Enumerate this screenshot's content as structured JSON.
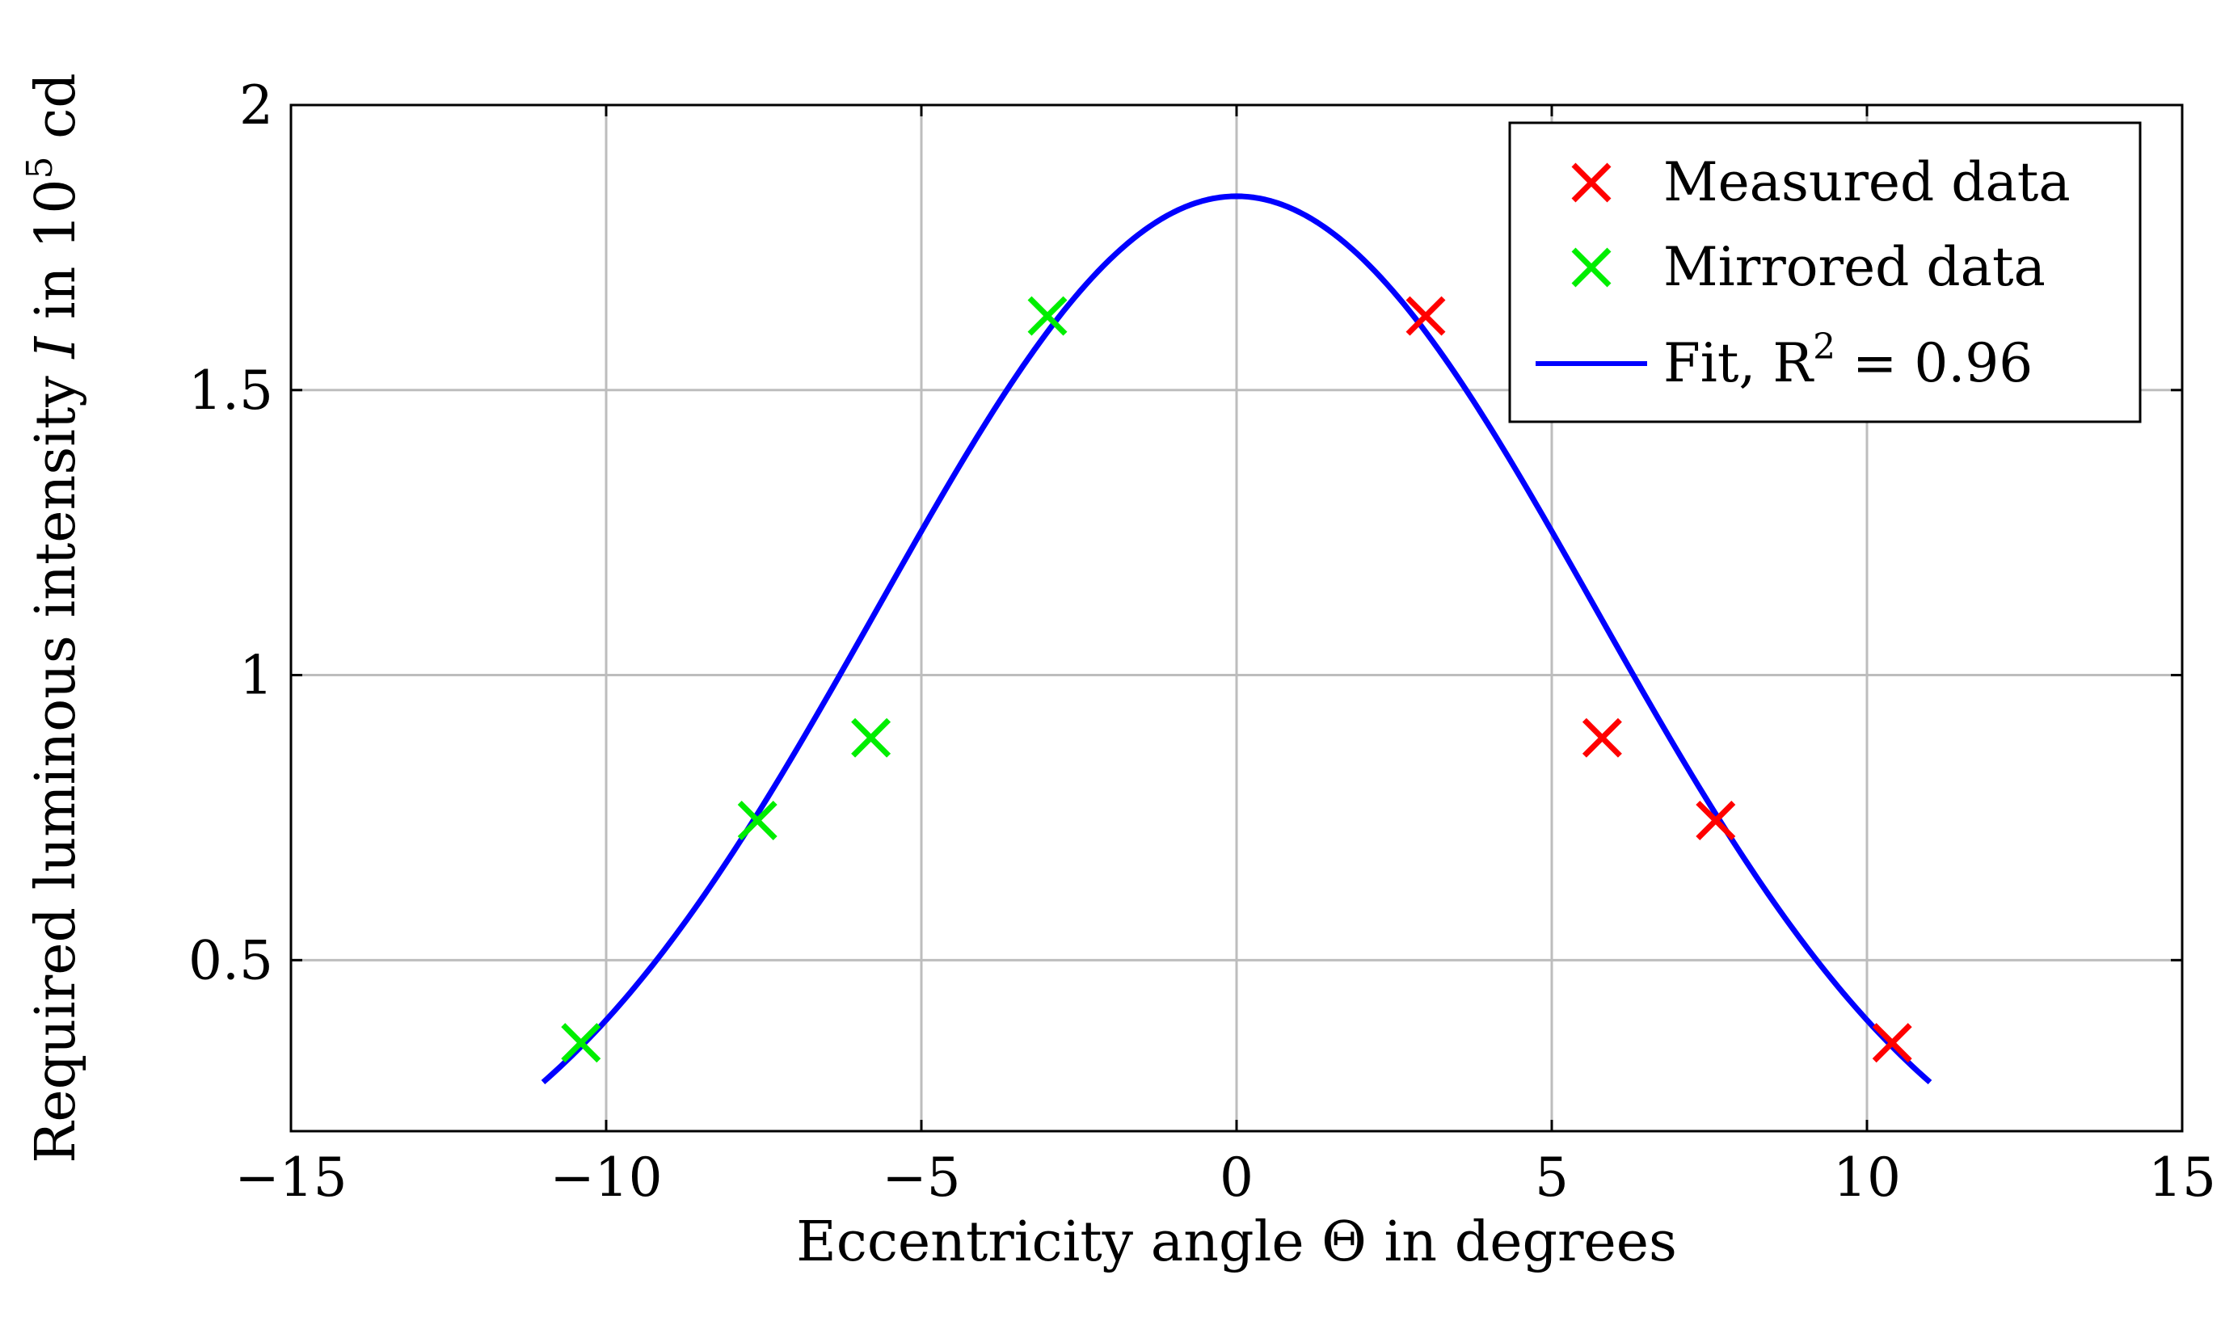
{
  "chart_data": {
    "type": "scatter",
    "title": "",
    "xlabel": "Eccentricity angle Θ in degrees",
    "ylabel": {
      "prefix": "Required luminous intensity ",
      "variable": "I",
      "middle": " in 10",
      "exponent": "5",
      "suffix": " cd"
    },
    "xlim": [
      -15,
      15
    ],
    "ylim": [
      0.2,
      2
    ],
    "xticks": [
      -15,
      -10,
      -5,
      0,
      5,
      10,
      15
    ],
    "xtick_labels": [
      "−15",
      "−10",
      "−5",
      "0",
      "5",
      "10",
      "15"
    ],
    "yticks": [
      0.5,
      1,
      1.5,
      2
    ],
    "ytick_labels": [
      "0.5",
      "1",
      "1.5",
      "2"
    ],
    "grid": true,
    "legend_position": "top-right",
    "series": [
      {
        "name": "Measured data",
        "kind": "marker",
        "marker": "x",
        "color": "#ff0000",
        "x": [
          3.0,
          5.8,
          7.6,
          10.4
        ],
        "y": [
          1.63,
          0.89,
          0.745,
          0.355
        ]
      },
      {
        "name": "Mirrored data",
        "kind": "marker",
        "marker": "x",
        "color": "#00ee00",
        "x": [
          -3.0,
          -5.8,
          -7.6,
          -10.4
        ],
        "y": [
          1.63,
          0.89,
          0.745,
          0.355
        ]
      },
      {
        "name": "Fit, R",
        "name_superscript": "2",
        "name_suffix": " = 0.96",
        "kind": "line",
        "color": "#0000ff",
        "model": "gaussian",
        "amplitude": 1.84,
        "sigma": 5.7,
        "x_range": [
          -11,
          11
        ]
      }
    ]
  }
}
